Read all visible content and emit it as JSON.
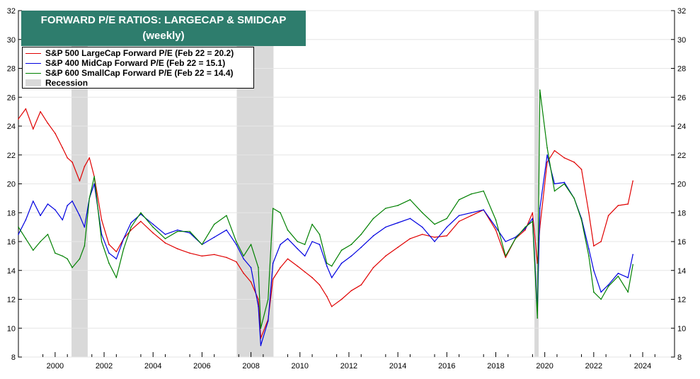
{
  "title": {
    "line1": "FORWARD P/E RATIOS: LARGECAP & SMIDCAP",
    "line2": "(weekly)"
  },
  "legend": [
    {
      "label": "S&P 500 LargeCap Forward P/E (Feb 22 = 20.2)",
      "color": "#e00000"
    },
    {
      "label": "S&P 400 MidCap Forward P/E (Feb 22 = 15.1)",
      "color": "#0000e0"
    },
    {
      "label": "S&P 600 SmallCap Forward P/E (Feb 22 = 14.4)",
      "color": "#008000"
    },
    {
      "label": "Recession",
      "color": "#d9d9d9"
    }
  ],
  "chart_data": {
    "type": "line",
    "title": "FORWARD P/E RATIOS: LARGECAP & SMIDCAP",
    "subtitle": "(weekly)",
    "xlabel": "",
    "ylabel": "",
    "xlim": [
      1999.0,
      2025.8
    ],
    "ylim": [
      8,
      32
    ],
    "x_ticks": [
      "2000",
      "2002",
      "2004",
      "2006",
      "2008",
      "2010",
      "2012",
      "2014",
      "2016",
      "2018",
      "2020",
      "2022",
      "2024"
    ],
    "y_ticks": [
      "8",
      "10",
      "12",
      "14",
      "16",
      "18",
      "20",
      "22",
      "24",
      "26",
      "28",
      "30",
      "32"
    ],
    "y_axis_both_sides": true,
    "grid": true,
    "legend_position": "top-left",
    "recessions": [
      [
        2001.17,
        2001.83
      ],
      [
        2007.92,
        2009.42
      ],
      [
        2020.08,
        2020.25
      ]
    ],
    "series": [
      {
        "name": "S&P 500 LargeCap Forward P/E (Feb 22 = 20.2)",
        "color": "#e00000",
        "x": [
          1999.0,
          1999.3,
          1999.6,
          1999.9,
          2000.2,
          2000.5,
          2000.8,
          2001.0,
          2001.2,
          2001.5,
          2001.7,
          2001.9,
          2002.1,
          2002.4,
          2002.7,
          2003.0,
          2003.3,
          2003.6,
          2004.0,
          2004.5,
          2005.0,
          2005.5,
          2006.0,
          2006.5,
          2007.0,
          2007.5,
          2007.9,
          2008.2,
          2008.5,
          2008.8,
          2008.9,
          2009.2,
          2009.4,
          2009.7,
          2010.0,
          2010.4,
          2010.7,
          2011.0,
          2011.3,
          2011.6,
          2011.8,
          2012.2,
          2012.6,
          2013.0,
          2013.5,
          2014.0,
          2014.5,
          2015.0,
          2015.5,
          2016.0,
          2016.5,
          2017.0,
          2017.5,
          2018.0,
          2018.5,
          2018.9,
          2019.3,
          2019.7,
          2020.0,
          2020.2,
          2020.3,
          2020.6,
          2020.9,
          2021.3,
          2021.7,
          2022.0,
          2022.3,
          2022.5,
          2022.8,
          2023.1,
          2023.5,
          2023.9,
          2024.1
        ],
        "values": [
          24.5,
          25.2,
          23.8,
          25.0,
          24.2,
          23.5,
          22.5,
          21.8,
          21.5,
          20.2,
          21.2,
          21.8,
          20.5,
          17.5,
          15.8,
          15.3,
          16.2,
          16.8,
          17.4,
          16.6,
          15.9,
          15.5,
          15.2,
          15.0,
          15.1,
          14.9,
          14.6,
          13.8,
          13.2,
          12.0,
          9.3,
          10.6,
          13.4,
          14.2,
          14.8,
          14.3,
          13.9,
          13.5,
          13.0,
          12.2,
          11.5,
          12.0,
          12.6,
          13.0,
          14.2,
          15.0,
          15.6,
          16.2,
          16.5,
          16.3,
          16.4,
          17.4,
          17.8,
          18.2,
          16.8,
          14.9,
          16.2,
          16.8,
          18.0,
          14.5,
          17.0,
          21.5,
          22.3,
          21.8,
          21.5,
          21.0,
          18.0,
          15.7,
          16.0,
          17.8,
          18.5,
          18.6,
          20.2
        ]
      },
      {
        "name": "S&P 400 MidCap Forward P/E (Feb 22 = 15.1)",
        "color": "#0000e0",
        "x": [
          1999.0,
          1999.3,
          1999.6,
          1999.9,
          2000.2,
          2000.5,
          2000.8,
          2001.0,
          2001.2,
          2001.5,
          2001.7,
          2001.9,
          2002.1,
          2002.4,
          2002.7,
          2003.0,
          2003.3,
          2003.6,
          2004.0,
          2004.5,
          2005.0,
          2005.5,
          2006.0,
          2006.5,
          2007.0,
          2007.5,
          2007.9,
          2008.2,
          2008.5,
          2008.8,
          2008.9,
          2009.2,
          2009.4,
          2009.7,
          2010.0,
          2010.4,
          2010.7,
          2011.0,
          2011.3,
          2011.6,
          2011.8,
          2012.2,
          2012.6,
          2013.0,
          2013.5,
          2014.0,
          2014.5,
          2015.0,
          2015.5,
          2016.0,
          2016.5,
          2017.0,
          2017.5,
          2018.0,
          2018.5,
          2018.9,
          2019.3,
          2019.7,
          2020.0,
          2020.2,
          2020.3,
          2020.6,
          2020.9,
          2021.3,
          2021.7,
          2022.0,
          2022.3,
          2022.5,
          2022.8,
          2023.1,
          2023.5,
          2023.9,
          2024.1
        ],
        "values": [
          16.5,
          17.5,
          18.8,
          17.8,
          18.6,
          18.2,
          17.5,
          18.5,
          18.8,
          17.8,
          17.0,
          19.0,
          20.0,
          16.5,
          15.2,
          14.8,
          16.2,
          17.3,
          17.9,
          17.2,
          16.5,
          16.8,
          16.6,
          15.8,
          16.3,
          16.8,
          15.8,
          14.8,
          14.2,
          11.5,
          8.8,
          10.5,
          14.5,
          15.8,
          16.2,
          15.5,
          15.0,
          16.0,
          15.8,
          14.3,
          13.5,
          14.5,
          15.0,
          15.6,
          16.4,
          17.0,
          17.3,
          17.6,
          17.0,
          16.0,
          17.0,
          17.8,
          18.0,
          18.2,
          17.0,
          16.0,
          16.3,
          16.9,
          17.6,
          11.2,
          18.3,
          22.0,
          20.0,
          20.1,
          19.0,
          17.6,
          15.5,
          14.0,
          12.5,
          13.0,
          13.8,
          13.5,
          15.1
        ]
      },
      {
        "name": "S&P 600 SmallCap Forward P/E (Feb 22 = 14.4)",
        "color": "#008000",
        "x": [
          1999.0,
          1999.3,
          1999.6,
          1999.9,
          2000.2,
          2000.5,
          2000.8,
          2001.0,
          2001.2,
          2001.5,
          2001.7,
          2001.9,
          2002.1,
          2002.4,
          2002.7,
          2003.0,
          2003.3,
          2003.6,
          2004.0,
          2004.5,
          2005.0,
          2005.5,
          2006.0,
          2006.5,
          2007.0,
          2007.5,
          2007.9,
          2008.2,
          2008.5,
          2008.8,
          2008.9,
          2009.2,
          2009.4,
          2009.7,
          2010.0,
          2010.4,
          2010.7,
          2011.0,
          2011.3,
          2011.6,
          2011.8,
          2012.2,
          2012.6,
          2013.0,
          2013.5,
          2014.0,
          2014.5,
          2015.0,
          2015.5,
          2016.0,
          2016.5,
          2017.0,
          2017.5,
          2018.0,
          2018.5,
          2018.9,
          2019.3,
          2019.7,
          2020.0,
          2020.2,
          2020.3,
          2020.6,
          2020.9,
          2021.3,
          2021.7,
          2022.0,
          2022.3,
          2022.5,
          2022.8,
          2023.1,
          2023.5,
          2023.9,
          2024.1
        ],
        "values": [
          17.0,
          16.2,
          15.4,
          16.0,
          16.5,
          15.2,
          15.0,
          14.8,
          14.2,
          14.8,
          15.7,
          19.0,
          20.5,
          16.0,
          14.5,
          13.5,
          15.5,
          17.0,
          18.0,
          17.0,
          16.2,
          16.7,
          16.7,
          15.8,
          17.2,
          17.8,
          16.0,
          15.0,
          15.8,
          14.2,
          10.0,
          12.0,
          18.3,
          18.0,
          16.8,
          16.0,
          15.8,
          17.2,
          16.5,
          14.5,
          14.3,
          15.4,
          15.8,
          16.5,
          17.6,
          18.3,
          18.5,
          18.9,
          18.0,
          17.2,
          17.6,
          18.9,
          19.3,
          19.5,
          17.5,
          15.0,
          16.2,
          17.0,
          17.4,
          10.7,
          26.5,
          22.5,
          19.5,
          20.0,
          19.0,
          17.5,
          15.0,
          12.5,
          12.0,
          12.9,
          13.6,
          12.5,
          14.4
        ]
      }
    ]
  }
}
